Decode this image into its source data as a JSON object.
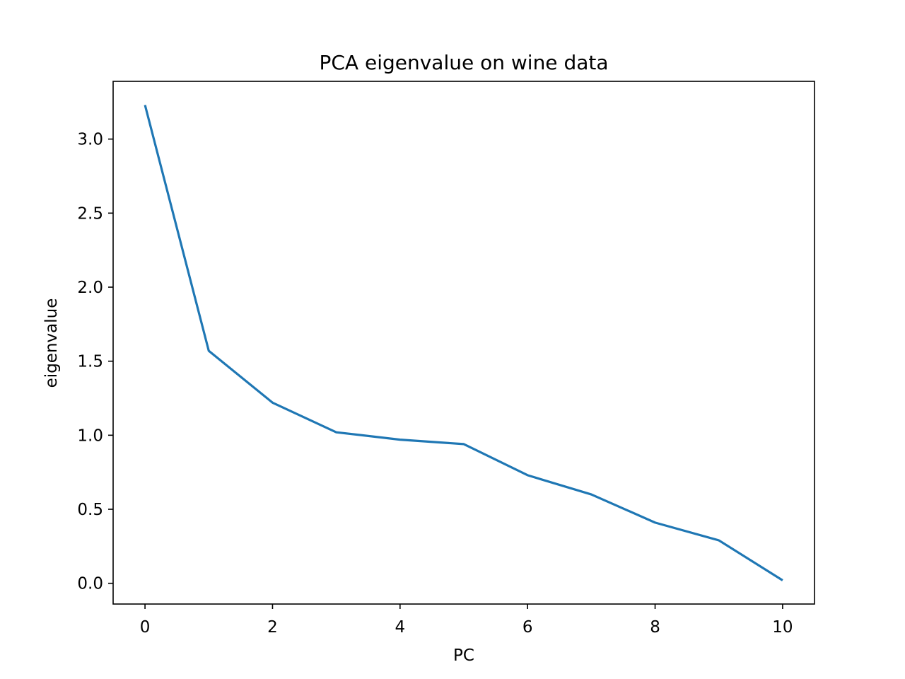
{
  "chart_data": {
    "type": "line",
    "title": "PCA eigenvalue on wine data",
    "xlabel": "PC",
    "ylabel": "eigenvalue",
    "xlim": [
      -0.5,
      10.5
    ],
    "ylim": [
      -0.14,
      3.39
    ],
    "xticks": [
      0,
      2,
      4,
      6,
      8,
      10
    ],
    "xtick_labels": [
      "0",
      "2",
      "4",
      "6",
      "8",
      "10"
    ],
    "yticks": [
      0.0,
      0.5,
      1.0,
      1.5,
      2.0,
      2.5,
      3.0
    ],
    "ytick_labels": [
      "0.0",
      "0.5",
      "1.0",
      "1.5",
      "2.0",
      "2.5",
      "3.0"
    ],
    "grid": false,
    "legend": "none",
    "series": [
      {
        "color": "#1f77b4",
        "x": [
          0,
          1,
          2,
          3,
          4,
          5,
          6,
          7,
          8,
          9,
          10
        ],
        "y": [
          3.23,
          1.57,
          1.22,
          1.02,
          0.97,
          0.94,
          0.73,
          0.6,
          0.41,
          0.29,
          0.02
        ]
      }
    ]
  }
}
